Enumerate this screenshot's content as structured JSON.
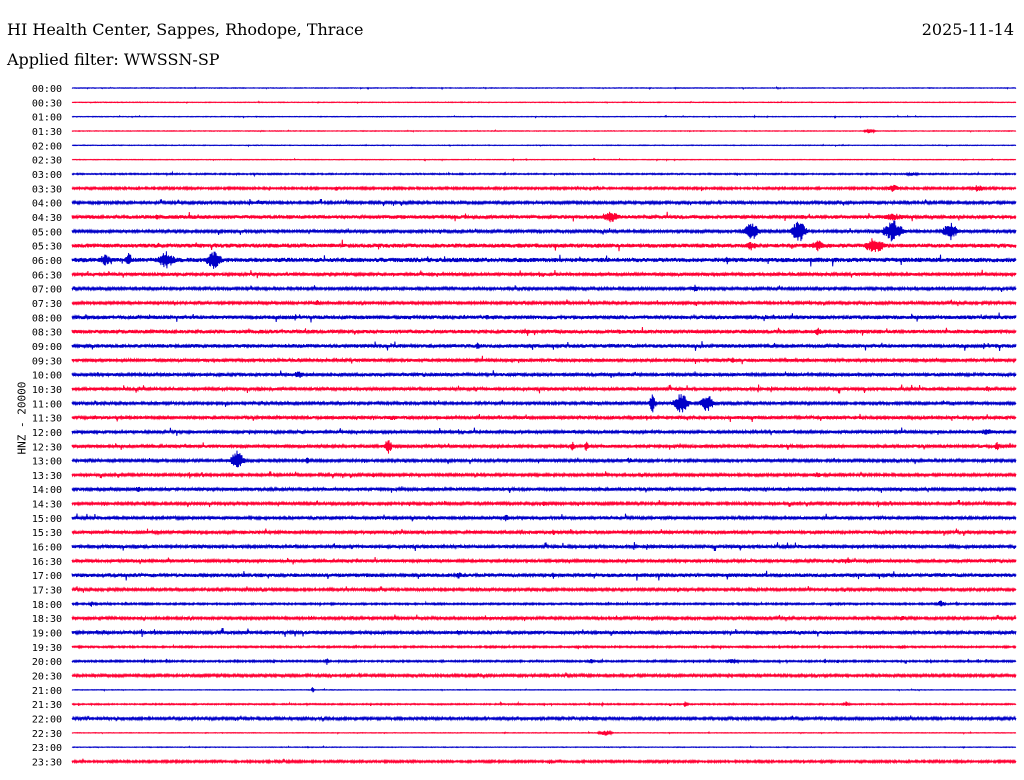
{
  "header": {
    "station": "HI Health Center, Sappes, Rhodope, Thrace",
    "date": "2025-11-14",
    "filter": "Applied filter: WWSSN-SP"
  },
  "chart_data": {
    "type": "line",
    "title": "HI Health Center, Sappes, Rhodope, Thrace",
    "ylabel": "HNZ - 20000",
    "colors": [
      "#0000c8",
      "#ff0033"
    ],
    "rows": [
      {
        "label": "00:00",
        "amp": 0.3,
        "events": []
      },
      {
        "label": "00:30",
        "amp": 0.3,
        "events": []
      },
      {
        "label": "01:00",
        "amp": 0.3,
        "events": []
      },
      {
        "label": "01:30",
        "amp": 0.3,
        "events": [
          [
            0.845,
            3,
            0.008
          ]
        ]
      },
      {
        "label": "02:00",
        "amp": 0.3,
        "events": []
      },
      {
        "label": "02:30",
        "amp": 0.3,
        "events": []
      },
      {
        "label": "03:00",
        "amp": 0.6,
        "events": [
          [
            0.89,
            2,
            0.01
          ]
        ]
      },
      {
        "label": "03:30",
        "amp": 1.0,
        "events": [
          [
            0.28,
            3,
            0.003
          ],
          [
            0.87,
            4,
            0.01
          ],
          [
            0.96,
            4,
            0.01
          ]
        ]
      },
      {
        "label": "04:00",
        "amp": 1.2,
        "events": [
          [
            0.2,
            3,
            0.01
          ]
        ]
      },
      {
        "label": "04:30",
        "amp": 1.8,
        "events": [
          [
            0.09,
            3,
            0.005
          ],
          [
            0.57,
            6,
            0.015
          ],
          [
            0.87,
            4,
            0.02
          ]
        ]
      },
      {
        "label": "05:00",
        "amp": 1.2,
        "events": [
          [
            0.72,
            10,
            0.012
          ],
          [
            0.77,
            12,
            0.012
          ],
          [
            0.87,
            12,
            0.015
          ],
          [
            0.93,
            10,
            0.012
          ]
        ]
      },
      {
        "label": "05:30",
        "amp": 2.0,
        "events": [
          [
            0.72,
            5,
            0.01
          ],
          [
            0.79,
            6,
            0.01
          ],
          [
            0.85,
            9,
            0.015
          ]
        ]
      },
      {
        "label": "06:00",
        "amp": 2.2,
        "events": [
          [
            0.035,
            6,
            0.01
          ],
          [
            0.06,
            9,
            0.005
          ],
          [
            0.1,
            9,
            0.014
          ],
          [
            0.15,
            10,
            0.012
          ]
        ]
      },
      {
        "label": "06:30",
        "amp": 1.5,
        "events": []
      },
      {
        "label": "07:00",
        "amp": 1.2,
        "events": [
          [
            0.66,
            4,
            0.006
          ]
        ]
      },
      {
        "label": "07:30",
        "amp": 1.2,
        "events": [
          [
            0.26,
            4,
            0.005
          ]
        ]
      },
      {
        "label": "08:00",
        "amp": 1.8,
        "events": [
          [
            0.44,
            3,
            0.004
          ]
        ]
      },
      {
        "label": "08:30",
        "amp": 1.8,
        "events": [
          [
            0.79,
            5,
            0.006
          ],
          [
            0.48,
            3,
            0.01
          ]
        ]
      },
      {
        "label": "09:00",
        "amp": 1.8,
        "events": [
          [
            0.43,
            4,
            0.004
          ]
        ]
      },
      {
        "label": "09:30",
        "amp": 1.5,
        "events": [
          [
            0.7,
            3,
            0.005
          ]
        ]
      },
      {
        "label": "10:00",
        "amp": 1.5,
        "events": [
          [
            0.24,
            4,
            0.01
          ]
        ]
      },
      {
        "label": "10:30",
        "amp": 1.5,
        "events": [
          [
            0.97,
            3,
            0.01
          ]
        ]
      },
      {
        "label": "11:00",
        "amp": 1.2,
        "events": [
          [
            0.615,
            10,
            0.005
          ],
          [
            0.645,
            11,
            0.012
          ],
          [
            0.673,
            10,
            0.01
          ]
        ]
      },
      {
        "label": "11:30",
        "amp": 1.5,
        "events": [
          [
            0.34,
            3,
            0.01
          ]
        ]
      },
      {
        "label": "12:00",
        "amp": 1.5,
        "events": [
          [
            0.97,
            3,
            0.02
          ]
        ]
      },
      {
        "label": "12:30",
        "amp": 1.5,
        "events": [
          [
            0.335,
            8,
            0.006
          ],
          [
            0.53,
            5,
            0.004
          ],
          [
            0.545,
            7,
            0.003
          ],
          [
            0.98,
            5,
            0.004
          ]
        ]
      },
      {
        "label": "13:00",
        "amp": 1.2,
        "events": [
          [
            0.175,
            11,
            0.01
          ],
          [
            0.25,
            4,
            0.005
          ],
          [
            0.59,
            3,
            0.01
          ]
        ]
      },
      {
        "label": "13:30",
        "amp": 1.2,
        "events": [
          [
            0.32,
            3,
            0.005
          ],
          [
            0.79,
            3,
            0.01
          ]
        ]
      },
      {
        "label": "14:00",
        "amp": 1.5,
        "events": [
          [
            0.07,
            4,
            0.004
          ]
        ]
      },
      {
        "label": "14:30",
        "amp": 1.2,
        "events": [
          [
            0.5,
            3,
            0.005
          ]
        ]
      },
      {
        "label": "15:00",
        "amp": 1.5,
        "events": [
          [
            0.46,
            4,
            0.006
          ]
        ]
      },
      {
        "label": "15:30",
        "amp": 1.5,
        "events": [
          [
            0.51,
            3,
            0.005
          ]
        ]
      },
      {
        "label": "16:00",
        "amp": 1.5,
        "events": []
      },
      {
        "label": "16:30",
        "amp": 1.5,
        "events": [
          [
            0.82,
            3,
            0.01
          ]
        ]
      },
      {
        "label": "17:00",
        "amp": 1.8,
        "events": [
          [
            0.41,
            5,
            0.004
          ]
        ]
      },
      {
        "label": "17:30",
        "amp": 1.2,
        "events": []
      },
      {
        "label": "18:00",
        "amp": 0.8,
        "events": [
          [
            0.02,
            4,
            0.003
          ],
          [
            0.92,
            4,
            0.006
          ]
        ]
      },
      {
        "label": "18:30",
        "amp": 1.2,
        "events": [
          [
            0.88,
            4,
            0.004
          ]
        ]
      },
      {
        "label": "19:00",
        "amp": 1.5,
        "events": [
          [
            0.41,
            3,
            0.01
          ]
        ]
      },
      {
        "label": "19:30",
        "amp": 0.8,
        "events": [
          [
            0.88,
            3,
            0.004
          ]
        ]
      },
      {
        "label": "20:00",
        "amp": 0.8,
        "events": [
          [
            0.27,
            4,
            0.003
          ],
          [
            0.55,
            4,
            0.003
          ],
          [
            0.7,
            3,
            0.01
          ]
        ]
      },
      {
        "label": "20:30",
        "amp": 1.2,
        "events": []
      },
      {
        "label": "21:00",
        "amp": 0.3,
        "events": [
          [
            0.255,
            4,
            0.002
          ]
        ]
      },
      {
        "label": "21:30",
        "amp": 0.6,
        "events": [
          [
            0.65,
            4,
            0.003
          ],
          [
            0.82,
            3,
            0.005
          ]
        ]
      },
      {
        "label": "22:00",
        "amp": 1.2,
        "events": [
          [
            0.55,
            2,
            0.01
          ]
        ]
      },
      {
        "label": "22:30",
        "amp": 0.3,
        "events": [
          [
            0.565,
            3,
            0.01
          ]
        ]
      },
      {
        "label": "23:00",
        "amp": 0.3,
        "events": []
      },
      {
        "label": "23:30",
        "amp": 1.0,
        "events": []
      }
    ]
  }
}
